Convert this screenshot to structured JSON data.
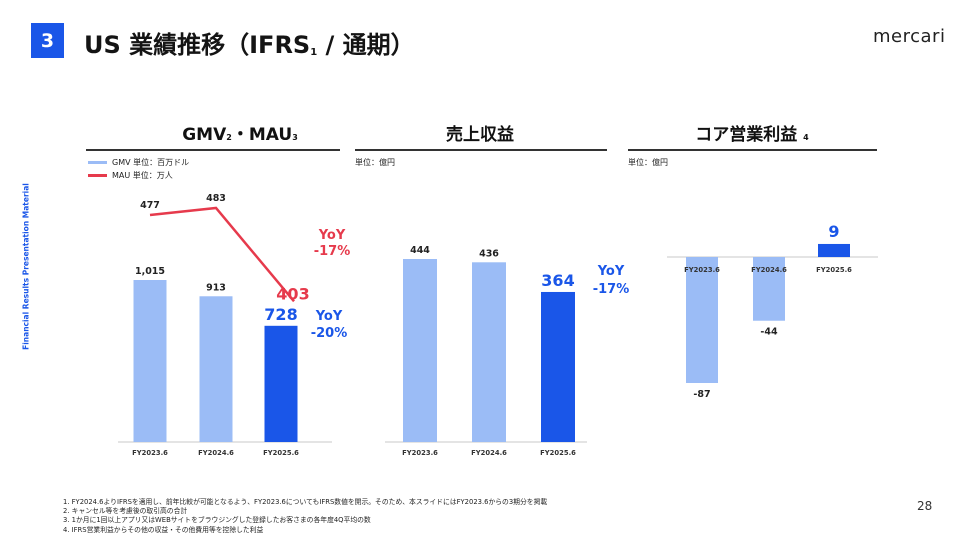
{
  "header": {
    "section_number": "3",
    "title_main": "US 業績推移（IFRS",
    "title_note": "1",
    "title_tail": " / 通期）",
    "brand": "mercari"
  },
  "side_label": "Financial Results Presentation Material",
  "panels": {
    "gmv": {
      "title": "GMV",
      "title_note1": "2",
      "title_mid": "・MAU",
      "title_note2": "3",
      "legend_gmv": "GMV 単位：百万ドル",
      "legend_mau": "MAU 単位：万人"
    },
    "revenue": {
      "title": "売上収益",
      "unit": "単位：億円"
    },
    "op_profit": {
      "title": "コア営業利益",
      "title_note": "4",
      "unit": "単位：億円"
    }
  },
  "colors": {
    "light_bar": "#9bbcf6",
    "dark_bar": "#1a56e8",
    "mau_line": "#e63a4c",
    "accent": "#1a56e8"
  },
  "chart_data": [
    {
      "type": "bar",
      "categories": [
        "FY2023.6",
        "FY2024.6",
        "FY2025.6"
      ],
      "series": [
        {
          "name": "GMV",
          "values": [
            1015,
            913,
            728
          ],
          "labels": [
            "1,015",
            "913",
            "728"
          ]
        }
      ],
      "line_series": {
        "name": "MAU",
        "values": [
          477,
          483,
          403
        ]
      },
      "annotations": {
        "gmv_yoy": [
          "YoY",
          "-20%"
        ],
        "mau_yoy": [
          "YoY",
          "-17%"
        ]
      }
    },
    {
      "type": "bar",
      "categories": [
        "FY2023.6",
        "FY2024.6",
        "FY2025.6"
      ],
      "values": [
        444,
        436,
        364
      ],
      "annotations": {
        "yoy": [
          "YoY",
          "-17%"
        ]
      }
    },
    {
      "type": "bar",
      "categories": [
        "FY2023.6",
        "FY2024.6",
        "FY2025.6"
      ],
      "values": [
        -87,
        -44,
        9
      ]
    }
  ],
  "footnotes": [
    "1. FY2024.6よりIFRSを適用し、前年比較が可能となるよう、FY2023.6についてもIFRS数値を開示。そのため、本スライドにはFY2023.6からの3期分を掲載",
    "2. キャンセル等を考慮後の取引高の合計",
    "3. 1か月に1回以上アプリ又はWEBサイトをブラウジングした登録したお客さまの各年度4Q平均の数",
    "4. IFRS営業利益からその他の収益・その他費用等を控除した利益"
  ],
  "page_number": "28"
}
